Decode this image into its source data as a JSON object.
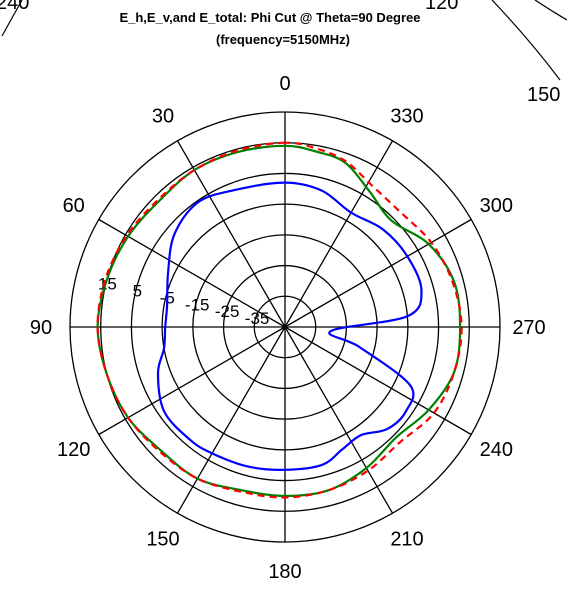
{
  "neighbor_fragments": {
    "left_label": "240",
    "center_label": "120",
    "right_label": "150"
  },
  "chart_data": {
    "type": "polar-line",
    "title": "E_h,E_v,and E_total: Phi Cut @ Theta=90 Degree",
    "subtitle": "(frequency=5150MHz)",
    "angle_direction": "counterclockwise",
    "zero_at": "top",
    "angle_ticks": [
      {
        "deg": 0,
        "label": "0"
      },
      {
        "deg": 30,
        "label": "30"
      },
      {
        "deg": 60,
        "label": "60"
      },
      {
        "deg": 90,
        "label": "90"
      },
      {
        "deg": 120,
        "label": "120"
      },
      {
        "deg": 150,
        "label": "150"
      },
      {
        "deg": 180,
        "label": "180"
      },
      {
        "deg": 210,
        "label": "210"
      },
      {
        "deg": 240,
        "label": "240"
      },
      {
        "deg": 270,
        "label": "270"
      },
      {
        "deg": 300,
        "label": "300"
      },
      {
        "deg": 330,
        "label": "330"
      }
    ],
    "r_range": [
      -45,
      25
    ],
    "r_ticks": [
      {
        "value": 15,
        "label": "15"
      },
      {
        "value": 5,
        "label": "5"
      },
      {
        "value": -5,
        "label": "-5"
      },
      {
        "value": -15,
        "label": "-15"
      },
      {
        "value": -25,
        "label": "-25"
      },
      {
        "value": -35,
        "label": "-35"
      }
    ],
    "series": [
      {
        "color": "#0000ff",
        "dash": "solid",
        "points": [
          [
            0,
            2
          ],
          [
            20,
            2.5
          ],
          [
            35,
            4.5
          ],
          [
            50,
            2
          ],
          [
            65,
            -3
          ],
          [
            80,
            -6
          ],
          [
            90,
            -6
          ],
          [
            100,
            -5
          ],
          [
            110,
            -1
          ],
          [
            125,
            3
          ],
          [
            140,
            3
          ],
          [
            150,
            2.5
          ],
          [
            165,
            2
          ],
          [
            180,
            1.5
          ],
          [
            195,
            1.5
          ],
          [
            205,
            -1
          ],
          [
            215,
            -2
          ],
          [
            225,
            2
          ],
          [
            235,
            3
          ],
          [
            245,
            0
          ],
          [
            255,
            -20
          ],
          [
            265,
            -30
          ],
          [
            275,
            -5
          ],
          [
            285,
            1
          ],
          [
            300,
            1
          ],
          [
            315,
            0
          ],
          [
            330,
            -2
          ],
          [
            345,
            1
          ],
          [
            360,
            2
          ]
        ]
      },
      {
        "color": "#008000",
        "dash": "solid",
        "points": [
          [
            0,
            14
          ],
          [
            15,
            14
          ],
          [
            30,
            14
          ],
          [
            45,
            13
          ],
          [
            60,
            14
          ],
          [
            75,
            15
          ],
          [
            90,
            16
          ],
          [
            105,
            15
          ],
          [
            120,
            14
          ],
          [
            135,
            12
          ],
          [
            150,
            12
          ],
          [
            165,
            10
          ],
          [
            180,
            10
          ],
          [
            195,
            10
          ],
          [
            210,
            8
          ],
          [
            225,
            6
          ],
          [
            240,
            9
          ],
          [
            255,
            12
          ],
          [
            270,
            12
          ],
          [
            285,
            12
          ],
          [
            300,
            9
          ],
          [
            315,
            4
          ],
          [
            328,
            7
          ],
          [
            340,
            12
          ],
          [
            350,
            13
          ],
          [
            360,
            14
          ]
        ]
      },
      {
        "color": "#ff0000",
        "dash": "dashed",
        "points": [
          [
            0,
            15
          ],
          [
            15,
            14.5
          ],
          [
            30,
            14
          ],
          [
            45,
            13.5
          ],
          [
            60,
            14.5
          ],
          [
            75,
            15.5
          ],
          [
            90,
            16
          ],
          [
            105,
            15
          ],
          [
            120,
            14
          ],
          [
            135,
            12.5
          ],
          [
            150,
            12
          ],
          [
            165,
            10.5
          ],
          [
            180,
            10.5
          ],
          [
            195,
            10
          ],
          [
            210,
            9
          ],
          [
            225,
            8
          ],
          [
            240,
            11
          ],
          [
            255,
            12
          ],
          [
            270,
            12.5
          ],
          [
            285,
            11.5
          ],
          [
            300,
            10
          ],
          [
            315,
            8
          ],
          [
            328,
            9
          ],
          [
            340,
            12.5
          ],
          [
            350,
            14
          ],
          [
            360,
            15
          ]
        ]
      }
    ]
  }
}
